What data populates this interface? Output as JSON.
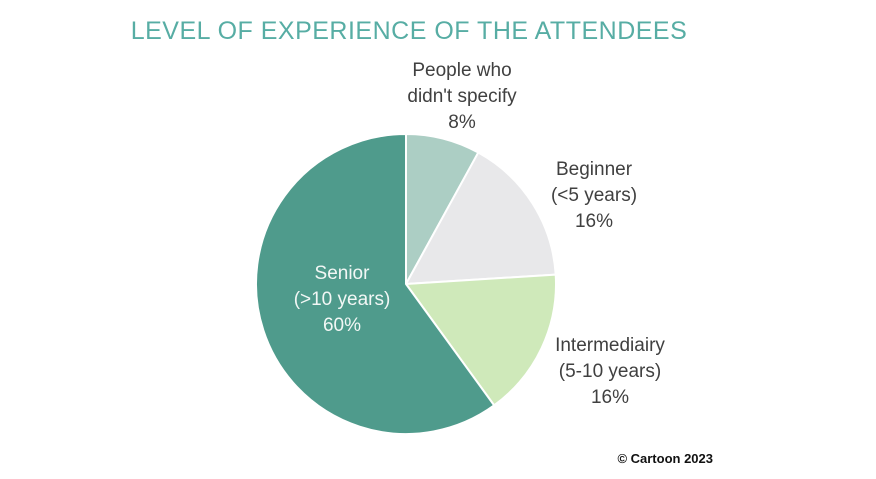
{
  "chart_data": {
    "type": "pie",
    "title": "LEVEL OF EXPERIENCE OF THE ATTENDEES",
    "direction": "clockwise",
    "start_angle_deg": 0,
    "slice_border_color": "#ffffff",
    "slices": [
      {
        "label": "People who didn't specify",
        "label_lines": [
          "People who",
          "didn't specify"
        ],
        "pct": "8%",
        "value": 8,
        "color": "#accec4",
        "label_placement": "outside-top"
      },
      {
        "label": "Beginner (<5 years)",
        "label_lines": [
          "Beginner",
          "(<5 years)"
        ],
        "pct": "16%",
        "value": 16,
        "color": "#e8e8ea",
        "label_placement": "outside-right"
      },
      {
        "label": "Intermediairy (5-10 years)",
        "label_lines": [
          "Intermediairy",
          "(5-10 years)"
        ],
        "pct": "16%",
        "value": 16,
        "color": "#cfe9ba",
        "label_placement": "outside-bottom-right"
      },
      {
        "label": "Senior (>10 years)",
        "label_lines": [
          "Senior",
          "(>10 years)"
        ],
        "pct": "60%",
        "value": 60,
        "color": "#4f9b8c",
        "label_placement": "inside"
      }
    ]
  },
  "colors": {
    "title": "#57ada4",
    "label_text": "#404040",
    "inside_label_text": "#f2f7f5",
    "background": "#ffffff"
  },
  "footer": {
    "credit": "© Cartoon 2023"
  }
}
